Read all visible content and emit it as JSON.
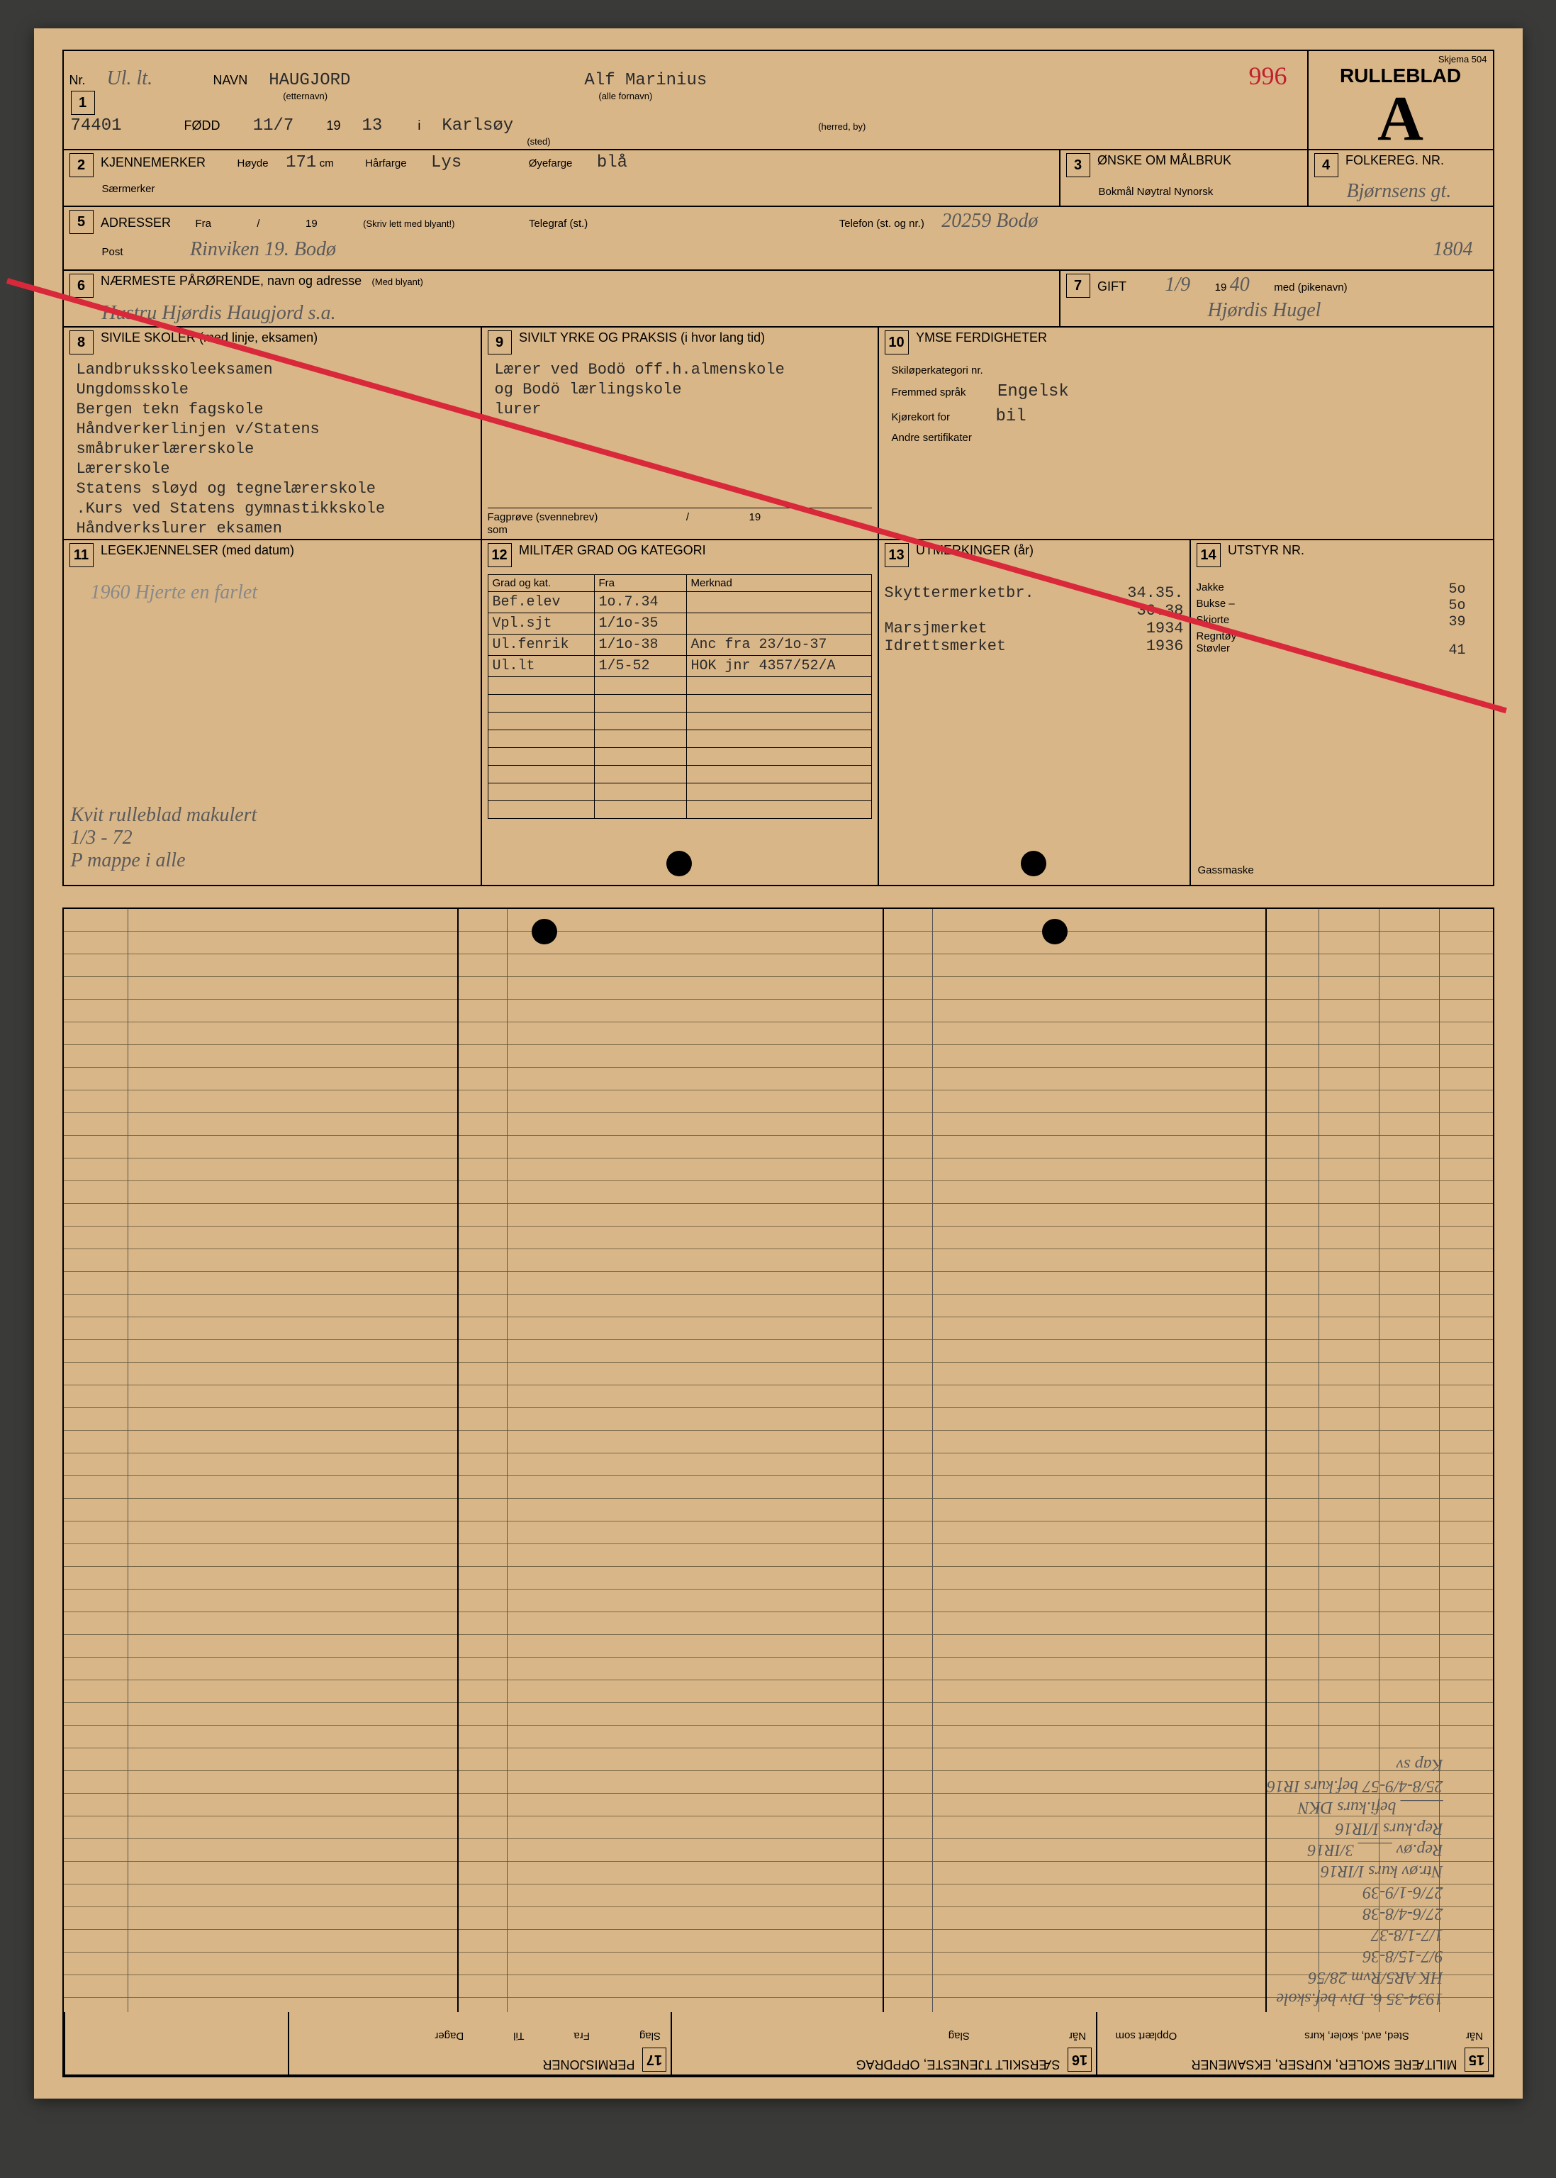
{
  "meta": {
    "skjema": "Skjema 504"
  },
  "header": {
    "nr_label": "Nr.",
    "nr_value": "Ul. lt.",
    "navn_label": "NAVN",
    "etternavn": "HAUGJORD",
    "etternavn_sub": "(etternavn)",
    "fornavn": "Alf Marinius",
    "fornavn_sub": "(alle fornavn)",
    "page_num": "996",
    "rulleblad": "RULLEBLAD",
    "big_letter": "A",
    "id": "74401",
    "fodd_label": "FØDD",
    "fodd_day": "11/7",
    "fodd_year_prefix": "19",
    "fodd_year": "13",
    "i_label": "i",
    "sted": "Karlsøy",
    "sted_sub": "(sted)",
    "herred_sub": "(herred, by)"
  },
  "box2": {
    "title": "KJENNEMERKER",
    "hoyde_label": "Høyde",
    "hoyde": "171",
    "cm": "cm",
    "harfarge_label": "Hårfarge",
    "harfarge": "Lys",
    "oyefarge_label": "Øyefarge",
    "oyefarge": "blå",
    "saermerker": "Særmerker"
  },
  "box3": {
    "title": "ØNSKE OM MÅLBRUK",
    "opts": "Bokmål   Nøytral   Nynorsk"
  },
  "box4": {
    "title": "FOLKEREG. NR.",
    "value": "Bjørnsens gt."
  },
  "box5": {
    "title": "ADRESSER",
    "fra": "Fra",
    "slash": "/",
    "y19": "19",
    "instr": "(Skriv lett med blyant!)",
    "telegraf": "Telegraf (st.)",
    "telefon": "Telefon (st. og nr.)",
    "tel_val": "20259 Bodø",
    "post": "Post",
    "addr": "Rinviken 19. Bodø",
    "tel_val2": "1804"
  },
  "box6": {
    "title": "NÆRMESTE PÅRØRENDE, navn og adresse",
    "sub": "(Med blyant)",
    "value": "Hustru Hjørdis Haugjord s.a."
  },
  "box7": {
    "title": "GIFT",
    "date": "1/9",
    "y19": "19",
    "yy": "40",
    "med": "med (pikenavn)",
    "name": "Hjørdis Hugel"
  },
  "box8": {
    "title": "SIVILE SKOLER  (med linje, eksamen)",
    "lines": [
      "Landbruksskoleeksamen",
      "Ungdomsskole",
      "Bergen tekn fagskole",
      "Håndverkerlinjen v/Statens",
      "småbrukerlærerskole",
      "Lærerskole",
      "Statens sløyd og tegnelærerskole",
      ".Kurs ved Statens gymnastikkskole",
      "Håndverkslurer eksamen"
    ]
  },
  "box9": {
    "title": "SIVILT YRKE OG PRAKSIS  (i hvor lang tid)",
    "lines": [
      "Lærer ved Bodö off.h.almenskole",
      "og Bodö lærlingskole",
      "lurer"
    ],
    "fagprove": "Fagprøve (svennebrev)",
    "slash": "/",
    "y19": "19",
    "som": "som"
  },
  "box10": {
    "title": "YMSE FERDIGHETER",
    "ski": "Skiløperkategori nr.",
    "sprak_lbl": "Fremmed språk",
    "sprak": "Engelsk",
    "kort_lbl": "Kjørekort for",
    "kort": "bil",
    "andre": "Andre sertifikater"
  },
  "box11": {
    "title": "LEGEKJENNELSER (med datum)",
    "note": "1960 Hjerte en farlet",
    "note2": "Kvit rulleblad makulert",
    "note3": "1/3 - 72",
    "note4": "P mappe i alle"
  },
  "box12": {
    "title": "MILITÆR GRAD OG KATEGORI",
    "cols": [
      "Grad og kat.",
      "Fra",
      "Merknad"
    ],
    "rows": [
      [
        "Bef.elev",
        "1o.7.34",
        ""
      ],
      [
        "Vpl.sjt",
        "1/1o-35",
        ""
      ],
      [
        "Ul.fenrik",
        "1/1o-38",
        "Anc fra 23/1o-37"
      ],
      [
        "Ul.lt",
        "1/5-52",
        "HOK jnr 4357/52/A"
      ]
    ]
  },
  "box13": {
    "title": "UTMERKINGER (år)",
    "rows": [
      [
        "Skyttermerketbr.",
        "34.35."
      ],
      [
        "",
        "36.38"
      ],
      [
        "Marsjmerket",
        "1934"
      ],
      [
        "Idrettsmerket",
        "1936"
      ]
    ]
  },
  "box14": {
    "title": "UTSTYR NR.",
    "items": [
      [
        "Jakke",
        "5o"
      ],
      [
        "Bukse –",
        "5o"
      ],
      [
        "Skjorte",
        "39"
      ],
      [
        "Regntøy",
        ""
      ],
      [
        "Støvler",
        "41"
      ]
    ],
    "gass": "Gassmaske"
  },
  "lower": {
    "box15": {
      "title": "MILITÆRE SKOLER, KURSER, EKSAMENER",
      "cols": [
        "Når",
        "Sted, avd, skoler, kurs",
        "Opplært som"
      ],
      "hand": [
        "1934-35  6. Div bef.skole",
        "HK AR5/Rvm 28/56",
        "9/7-15/8-36",
        "1/7-1/8-37",
        "27/6-4/8-38",
        "27/6-1/9-39",
        "Ntr.øv kurs I/IR16",
        "Rep.øv ____ 3/IR16",
        "Rep.kurs I/IR16",
        "_____ befi.kurs DKN",
        "25/8-4/9-57 bef.kurs  IR16",
        "Kap sv"
      ]
    },
    "box16": {
      "title": "SÆRSKILT TJENESTE, OPPDRAG",
      "cols": [
        "Når",
        "Slag"
      ]
    },
    "box17": {
      "title": "PERMISJONER",
      "cols": [
        "Slag",
        "Fra",
        "Til",
        "Dager"
      ]
    },
    "colors": {
      "bg": "#d9b688",
      "line": "#000000",
      "typed": "#2a2a2a",
      "hand": "#5a5a5a",
      "red": "#d8283a"
    }
  }
}
